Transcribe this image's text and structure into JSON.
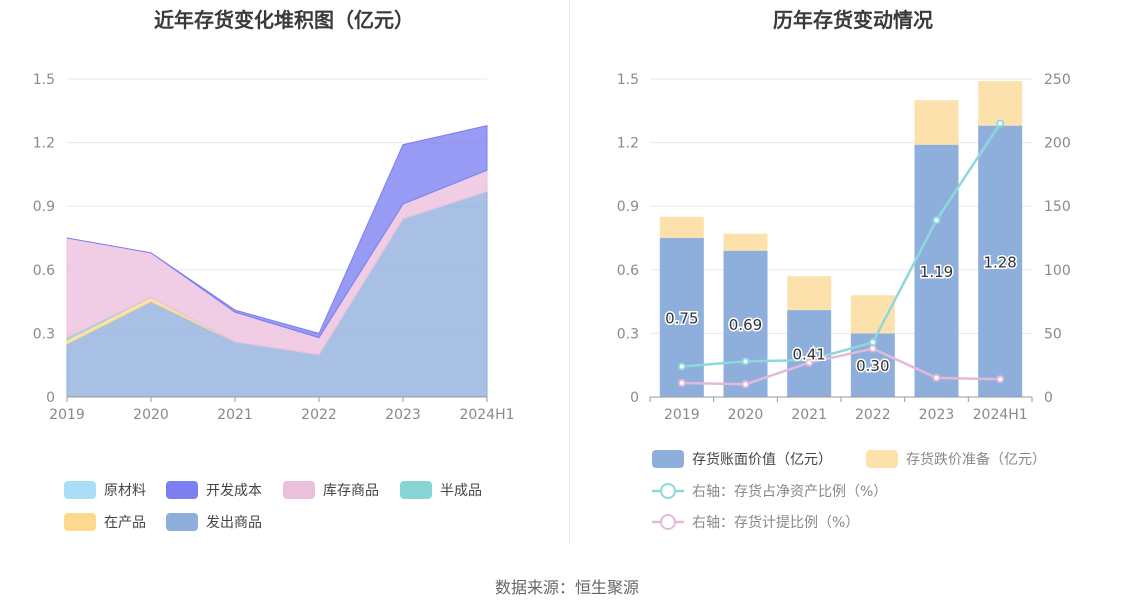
{
  "source": "数据来源：恒生聚源",
  "colors": {
    "raw_material": "#a8def7",
    "dev_cost": "#7b7ff0",
    "stock_goods": "#ecbfdc",
    "semi": "#86d6d6",
    "in_process": "#fdd98f",
    "shipped": "#8eaedc",
    "book_value": "#8eaedc",
    "impairment": "#fde1ad",
    "net_asset_line": "#8ed8dc",
    "provision_line": "#e3b9da",
    "grid": "#e6e8f0",
    "axis": "#999999"
  },
  "chart_data": [
    {
      "type": "area",
      "title": "近年存货变化堆积图（亿元）",
      "x": [
        "2019",
        "2020",
        "2021",
        "2022",
        "2023",
        "2024H1"
      ],
      "ylim": [
        0,
        1.5
      ],
      "yticks": [
        "0",
        "0.3",
        "0.6",
        "0.9",
        "1.2",
        "1.5"
      ],
      "stacked": true,
      "series": [
        {
          "name": "发出商品",
          "color_key": "shipped",
          "values": [
            0.25,
            0.45,
            0.26,
            0.2,
            0.84,
            0.97
          ]
        },
        {
          "name": "在产品",
          "color_key": "in_process",
          "values": [
            0.02,
            0.02,
            0.0,
            0.0,
            0.0,
            0.0
          ]
        },
        {
          "name": "半成品",
          "color_key": "semi",
          "values": [
            0.01,
            0.0,
            0.0,
            0.0,
            0.0,
            0.0
          ]
        },
        {
          "name": "原材料",
          "color_key": "raw_material",
          "values": [
            0.0,
            0.0,
            0.0,
            0.0,
            0.0,
            0.0
          ]
        },
        {
          "name": "库存商品",
          "color_key": "stock_goods",
          "values": [
            0.47,
            0.21,
            0.14,
            0.08,
            0.07,
            0.1
          ]
        },
        {
          "name": "开发成本",
          "color_key": "dev_cost",
          "values": [
            0.0,
            0.0,
            0.01,
            0.02,
            0.28,
            0.21
          ]
        }
      ],
      "legend": {
        "rows": [
          [
            {
              "name": "原材料",
              "color_key": "raw_material"
            },
            {
              "name": "开发成本",
              "color_key": "dev_cost"
            },
            {
              "name": "库存商品",
              "color_key": "stock_goods"
            },
            {
              "name": "半成品",
              "color_key": "semi"
            }
          ],
          [
            {
              "name": "在产品",
              "color_key": "in_process"
            },
            {
              "name": "发出商品",
              "color_key": "shipped"
            }
          ]
        ]
      }
    },
    {
      "type": "bar",
      "title": "历年存货变动情况",
      "x": [
        "2019",
        "2020",
        "2021",
        "2022",
        "2023",
        "2024H1"
      ],
      "ylim": [
        0,
        1.5
      ],
      "yticks": [
        "0",
        "0.3",
        "0.6",
        "0.9",
        "1.2",
        "1.5"
      ],
      "y2lim": [
        0,
        250
      ],
      "y2ticks": [
        "0",
        "50",
        "100",
        "150",
        "200",
        "250"
      ],
      "series": [
        {
          "name": "存货账面价值（亿元）",
          "kind": "bar",
          "stack": true,
          "color_key": "book_value",
          "values": [
            0.75,
            0.69,
            0.41,
            0.3,
            1.19,
            1.28
          ],
          "labels": [
            "0.75",
            "0.69",
            "0.41",
            "0.30",
            "1.19",
            "1.28"
          ]
        },
        {
          "name": "存货跌价准备（亿元）",
          "kind": "bar",
          "stack": true,
          "color_key": "impairment",
          "values": [
            0.1,
            0.08,
            0.16,
            0.18,
            0.21,
            0.21
          ]
        },
        {
          "name": "右轴：存货占净资产比例（%）",
          "kind": "line",
          "axis": "right",
          "color_key": "net_asset_line",
          "values": [
            24,
            28,
            29,
            43,
            139,
            215
          ]
        },
        {
          "name": "右轴：存货计提比例（%）",
          "kind": "line",
          "axis": "right",
          "color_key": "provision_line",
          "values": [
            11,
            10,
            27,
            38,
            15,
            14
          ]
        }
      ],
      "legend": {
        "rows": [
          [
            {
              "name": "存货账面价值（亿元）",
              "color_key": "book_value",
              "shape": "rect"
            },
            {
              "name": "存货跌价准备（亿元）",
              "color_key": "impairment",
              "shape": "rect"
            }
          ],
          [
            {
              "name": "右轴：存货占净资产比例（%）",
              "color_key": "net_asset_line",
              "shape": "line"
            }
          ],
          [
            {
              "name": "右轴：存货计提比例（%）",
              "color_key": "provision_line",
              "shape": "line"
            }
          ]
        ]
      }
    }
  ]
}
